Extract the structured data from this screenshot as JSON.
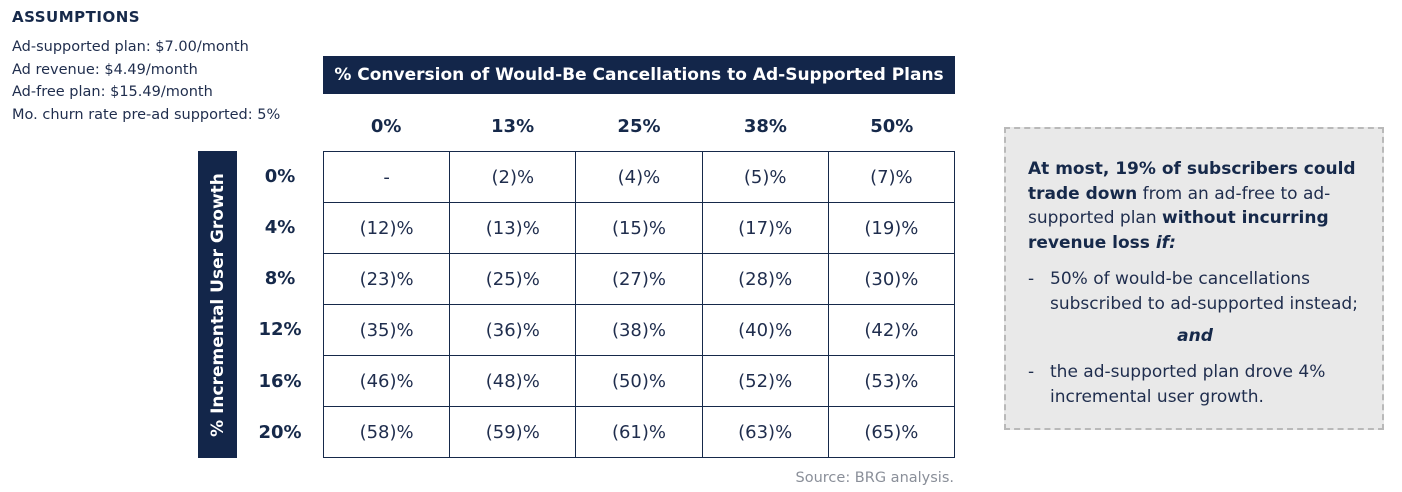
{
  "assumptions": {
    "title": "ASSUMPTIONS",
    "lines": [
      "Ad-supported plan: $7.00/month",
      "Ad revenue: $4.49/month",
      "Ad-free plan: $15.49/month",
      "Mo. churn rate pre-ad supported: 5%"
    ]
  },
  "chart_data": {
    "type": "table",
    "column_header": "% Conversion of Would-Be Cancellations to Ad-Supported Plans",
    "row_header": "% Incremental User Growth",
    "columns": [
      "0%",
      "13%",
      "25%",
      "38%",
      "50%"
    ],
    "rows": [
      "0%",
      "4%",
      "8%",
      "12%",
      "16%",
      "20%"
    ],
    "cells": [
      [
        "-",
        "(2)%",
        "(4)%",
        "(5)%",
        "(7)%"
      ],
      [
        "(12)%",
        "(13)%",
        "(15)%",
        "(17)%",
        "(19)%"
      ],
      [
        "(23)%",
        "(25)%",
        "(27)%",
        "(28)%",
        "(30)%"
      ],
      [
        "(35)%",
        "(36)%",
        "(38)%",
        "(40)%",
        "(42)%"
      ],
      [
        "(46)%",
        "(48)%",
        "(50)%",
        "(52)%",
        "(53)%"
      ],
      [
        "(58)%",
        "(59)%",
        "(61)%",
        "(63)%",
        "(65)%"
      ]
    ]
  },
  "source": "Source: BRG analysis.",
  "callout": {
    "head": [
      {
        "text": "At most, 19% of subscribers could trade down",
        "bold": true
      },
      {
        "text": " from an ad-free to ad-supported plan ",
        "bold": false
      },
      {
        "text": "without incurring revenue loss",
        "bold": true
      },
      {
        "text": " if:",
        "bold": true,
        "italic": true
      }
    ],
    "bullet_1": "50% of would-be cancellations subscribed to ad-supported instead;",
    "connector": "and",
    "bullet_2": "the ad-supported plan drove 4% incremental user growth.",
    "dash": "-"
  },
  "colors": {
    "navy": "#13264a",
    "text": "#1f2d4d",
    "callout_bg": "#e9e9e9",
    "muted": "#8a8f99"
  }
}
